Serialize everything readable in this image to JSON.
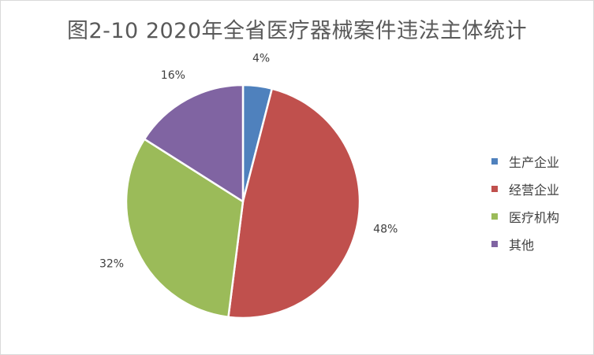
{
  "chart_data": {
    "type": "pie",
    "title": "图2-10 2020年全省医疗器械案件违法主体统计",
    "categories": [
      "生产企业",
      "经营企业",
      "医疗机构",
      "其他"
    ],
    "values": [
      4,
      48,
      32,
      16
    ],
    "data_labels": [
      "4%",
      "48%",
      "32%",
      "16%"
    ],
    "colors": [
      "#4F81BD",
      "#C0504D",
      "#9BBB59",
      "#8064A2"
    ],
    "start_angle_deg": 0,
    "direction": "clockwise",
    "legend_position": "right"
  }
}
